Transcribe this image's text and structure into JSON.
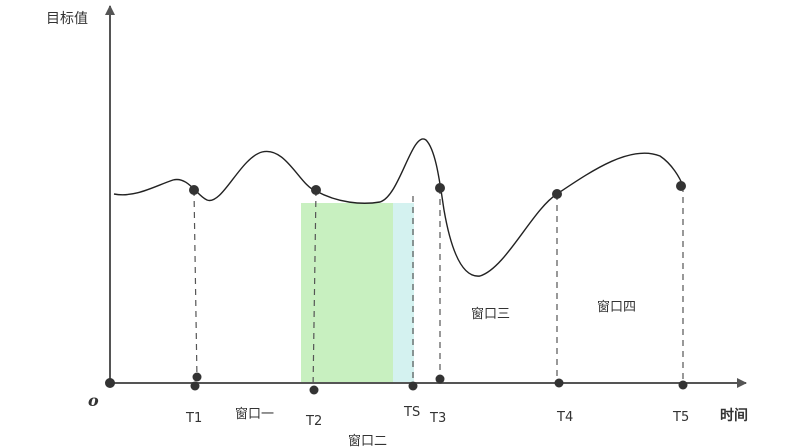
{
  "axes": {
    "y_label": "目标值",
    "x_label": "时间",
    "origin": "o"
  },
  "ticks": {
    "t1": "T1",
    "t2": "T2",
    "ts": "TS",
    "t3": "T3",
    "t4": "T4",
    "t5": "T5"
  },
  "windows": {
    "w1": "窗口一",
    "w2": "窗口二",
    "w3": "窗口三",
    "w4": "窗口四"
  },
  "colors": {
    "curve": "#222222",
    "axis": "#555555",
    "window2_fill": "#c8f0c0",
    "ts_fill": "#d4f2f0",
    "dashed": "#555555",
    "points": "#333333"
  }
}
